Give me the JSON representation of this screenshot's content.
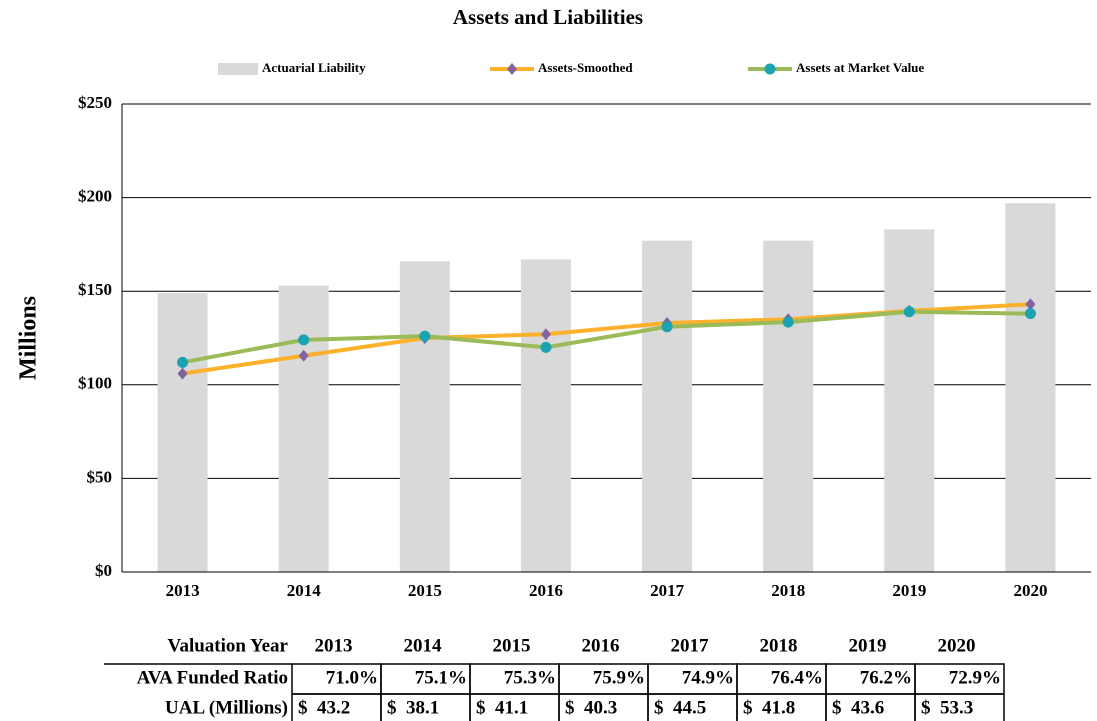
{
  "chart_data": {
    "type": "bar-line",
    "title": "Assets and Liabilities",
    "y_label": "Millions",
    "categories": [
      "2013",
      "2014",
      "2015",
      "2016",
      "2017",
      "2018",
      "2019",
      "2020"
    ],
    "series": [
      {
        "name": "Actuarial Liability",
        "type": "bar",
        "color": "#d9d9d9",
        "values": [
          149,
          153,
          166,
          167,
          177,
          177,
          183,
          197
        ]
      },
      {
        "name": "Assets-Smoothed",
        "type": "line",
        "color": "#fbb12b",
        "marker": "diamond",
        "marker_color": "#8064a2",
        "values": [
          106,
          115.5,
          125,
          127,
          133,
          135,
          139.5,
          143
        ]
      },
      {
        "name": "Assets at Market Value",
        "type": "line",
        "color": "#9bbb59",
        "marker": "circle",
        "marker_color": "#1aa3b0",
        "values": [
          112,
          124,
          126,
          120,
          131,
          133.5,
          139,
          138
        ]
      }
    ],
    "ylim": [
      0,
      250
    ],
    "yticks": [
      {
        "value": 0,
        "label": "$0"
      },
      {
        "value": 50,
        "label": "$50"
      },
      {
        "value": 100,
        "label": "$100"
      },
      {
        "value": 150,
        "label": "$150"
      },
      {
        "value": 200,
        "label": "$200"
      },
      {
        "value": 250,
        "label": "$250"
      }
    ],
    "grid": true,
    "legend": "top"
  },
  "table": {
    "rows": [
      [
        "Valuation Year",
        "2013",
        "2014",
        "2015",
        "2016",
        "2017",
        "2018",
        "2019",
        "2020"
      ],
      [
        "AVA Funded Ratio",
        "71.0%",
        "75.1%",
        "75.3%",
        "75.9%",
        "74.9%",
        "76.4%",
        "76.2%",
        "72.9%"
      ],
      [
        "UAL (Millions)",
        "$  43.2",
        "$  38.1",
        "$  41.1",
        "$  40.3",
        "$  44.5",
        "$  41.8",
        "$  43.6",
        "$  53.3"
      ]
    ]
  }
}
